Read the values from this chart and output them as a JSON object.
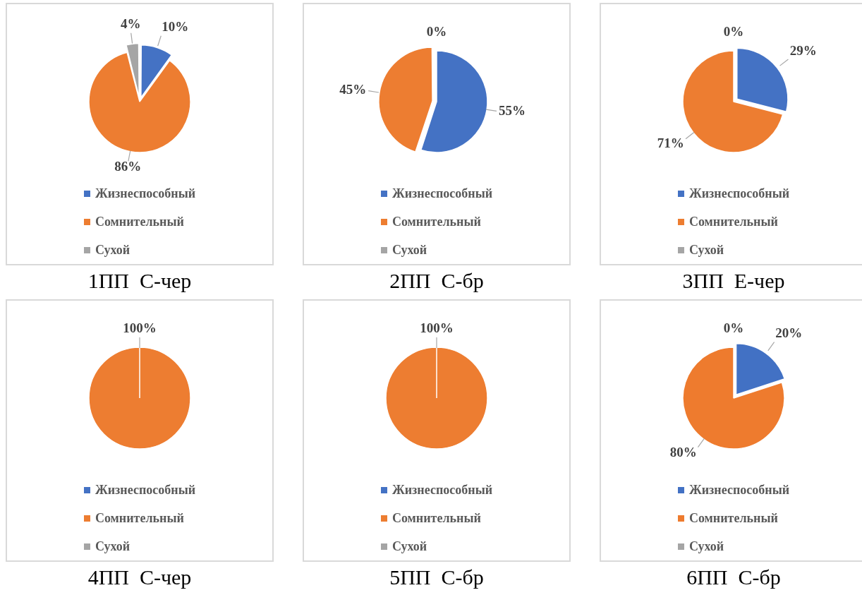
{
  "chart_data": [
    {
      "type": "pie",
      "title": "1ПП  С-чер",
      "categories": [
        "Жизнеспособный",
        "Сомнительный",
        "Сухой"
      ],
      "values": [
        10,
        86,
        4
      ],
      "colors": [
        "#4472c4",
        "#ed7d31",
        "#a5a5a5"
      ],
      "value_labels": [
        "10%",
        "86%",
        "4%"
      ],
      "legend": "bottom"
    },
    {
      "type": "pie",
      "title": "2ПП  С-бр",
      "categories": [
        "Жизнеспособный",
        "Сомнительный",
        "Сухой"
      ],
      "values": [
        55,
        45,
        0
      ],
      "colors": [
        "#4472c4",
        "#ed7d31",
        "#a5a5a5"
      ],
      "value_labels": [
        "55%",
        "45%",
        "0%"
      ],
      "legend": "bottom"
    },
    {
      "type": "pie",
      "title": "3ПП  Е-чер",
      "categories": [
        "Жизнеспособный",
        "Сомнительный",
        "Сухой"
      ],
      "values": [
        29,
        71,
        0
      ],
      "colors": [
        "#4472c4",
        "#ed7d31",
        "#a5a5a5"
      ],
      "value_labels": [
        "29%",
        "71%",
        "0%"
      ],
      "legend": "bottom"
    },
    {
      "type": "pie",
      "title": "4ПП  С-чер",
      "categories": [
        "Жизнеспособный",
        "Сомнительный",
        "Сухой"
      ],
      "values": [
        0,
        100,
        0
      ],
      "colors": [
        "#4472c4",
        "#ed7d31",
        "#a5a5a5"
      ],
      "value_labels": [
        null,
        "100%",
        null
      ],
      "legend": "bottom"
    },
    {
      "type": "pie",
      "title": "5ПП  С-бр",
      "categories": [
        "Жизнеспособный",
        "Сомнительный",
        "Сухой"
      ],
      "values": [
        0,
        100,
        0
      ],
      "colors": [
        "#4472c4",
        "#ed7d31",
        "#a5a5a5"
      ],
      "value_labels": [
        null,
        "100%",
        null
      ],
      "legend": "bottom"
    },
    {
      "type": "pie",
      "title": "6ПП  С-бр",
      "categories": [
        "Жизнеспособный",
        "Сомнительный",
        "Сухой"
      ],
      "values": [
        20,
        80,
        0
      ],
      "colors": [
        "#4271c4",
        "#ee7b2e",
        "#a5a5a5"
      ],
      "value_labels": [
        "20%",
        "80%",
        "0%"
      ],
      "legend": "bottom"
    }
  ]
}
